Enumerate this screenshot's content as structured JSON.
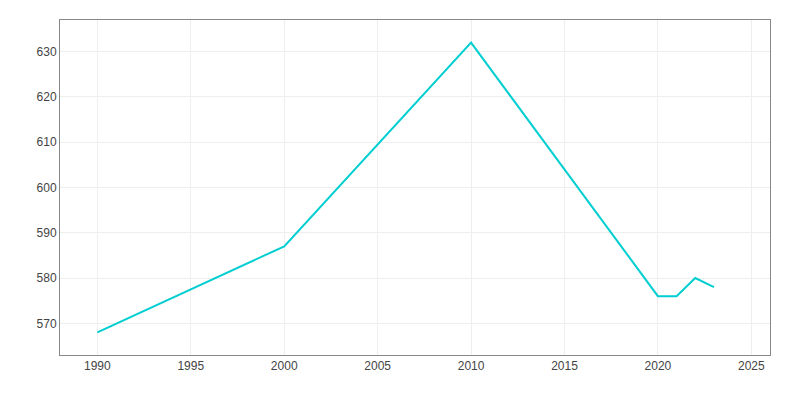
{
  "chart_data": {
    "type": "line",
    "x": [
      1990,
      2000,
      2010,
      2020,
      2021,
      2022,
      2023
    ],
    "values": [
      568,
      587,
      632,
      576,
      576,
      580,
      578
    ],
    "color": "#00CED1",
    "xlim": [
      1988,
      2026
    ],
    "ylim": [
      563,
      637
    ],
    "xticks": [
      1990,
      1995,
      2000,
      2005,
      2010,
      2015,
      2020,
      2025
    ],
    "yticks": [
      570,
      580,
      590,
      600,
      610,
      620,
      630
    ],
    "grid": true
  }
}
